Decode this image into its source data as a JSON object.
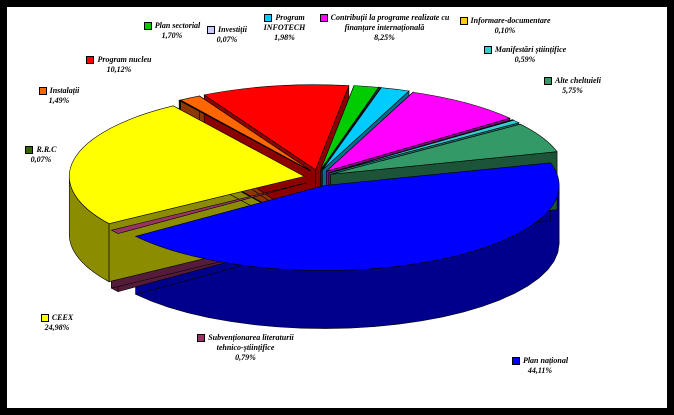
{
  "chart_data": {
    "type": "pie3d",
    "categories": [
      "Plan național",
      "Subvenționarea literaturii tehnico-științifice",
      "CEEX",
      "R.R.C",
      "Instalații",
      "Program nucleu",
      "Plan sectorial",
      "Investiții",
      "Program INFOTECH",
      "Contribuții la programe realizate cu finanțare internațională",
      "Informare-documentare",
      "Manifestări științifice",
      "Alte cheltuieli"
    ],
    "values": [
      44.11,
      0.79,
      24.98,
      0.07,
      1.49,
      10.12,
      1.7,
      0.07,
      1.98,
      8.25,
      0.1,
      0.59,
      5.75
    ],
    "value_labels": [
      "44,11%",
      "0,79%",
      "24,98%",
      "0,07%",
      "1,49%",
      "10,12%",
      "1,70%",
      "0,07%",
      "1,98%",
      "8,25%",
      "0,10%",
      "0,59%",
      "5,75%"
    ],
    "colors": [
      "#0000ff",
      "#993366",
      "#ffff00",
      "#336600",
      "#ff6600",
      "#ff0000",
      "#00cc00",
      "#ccccff",
      "#00ccff",
      "#ff00ff",
      "#ffcc00",
      "#33cccc",
      "#339966"
    ]
  }
}
